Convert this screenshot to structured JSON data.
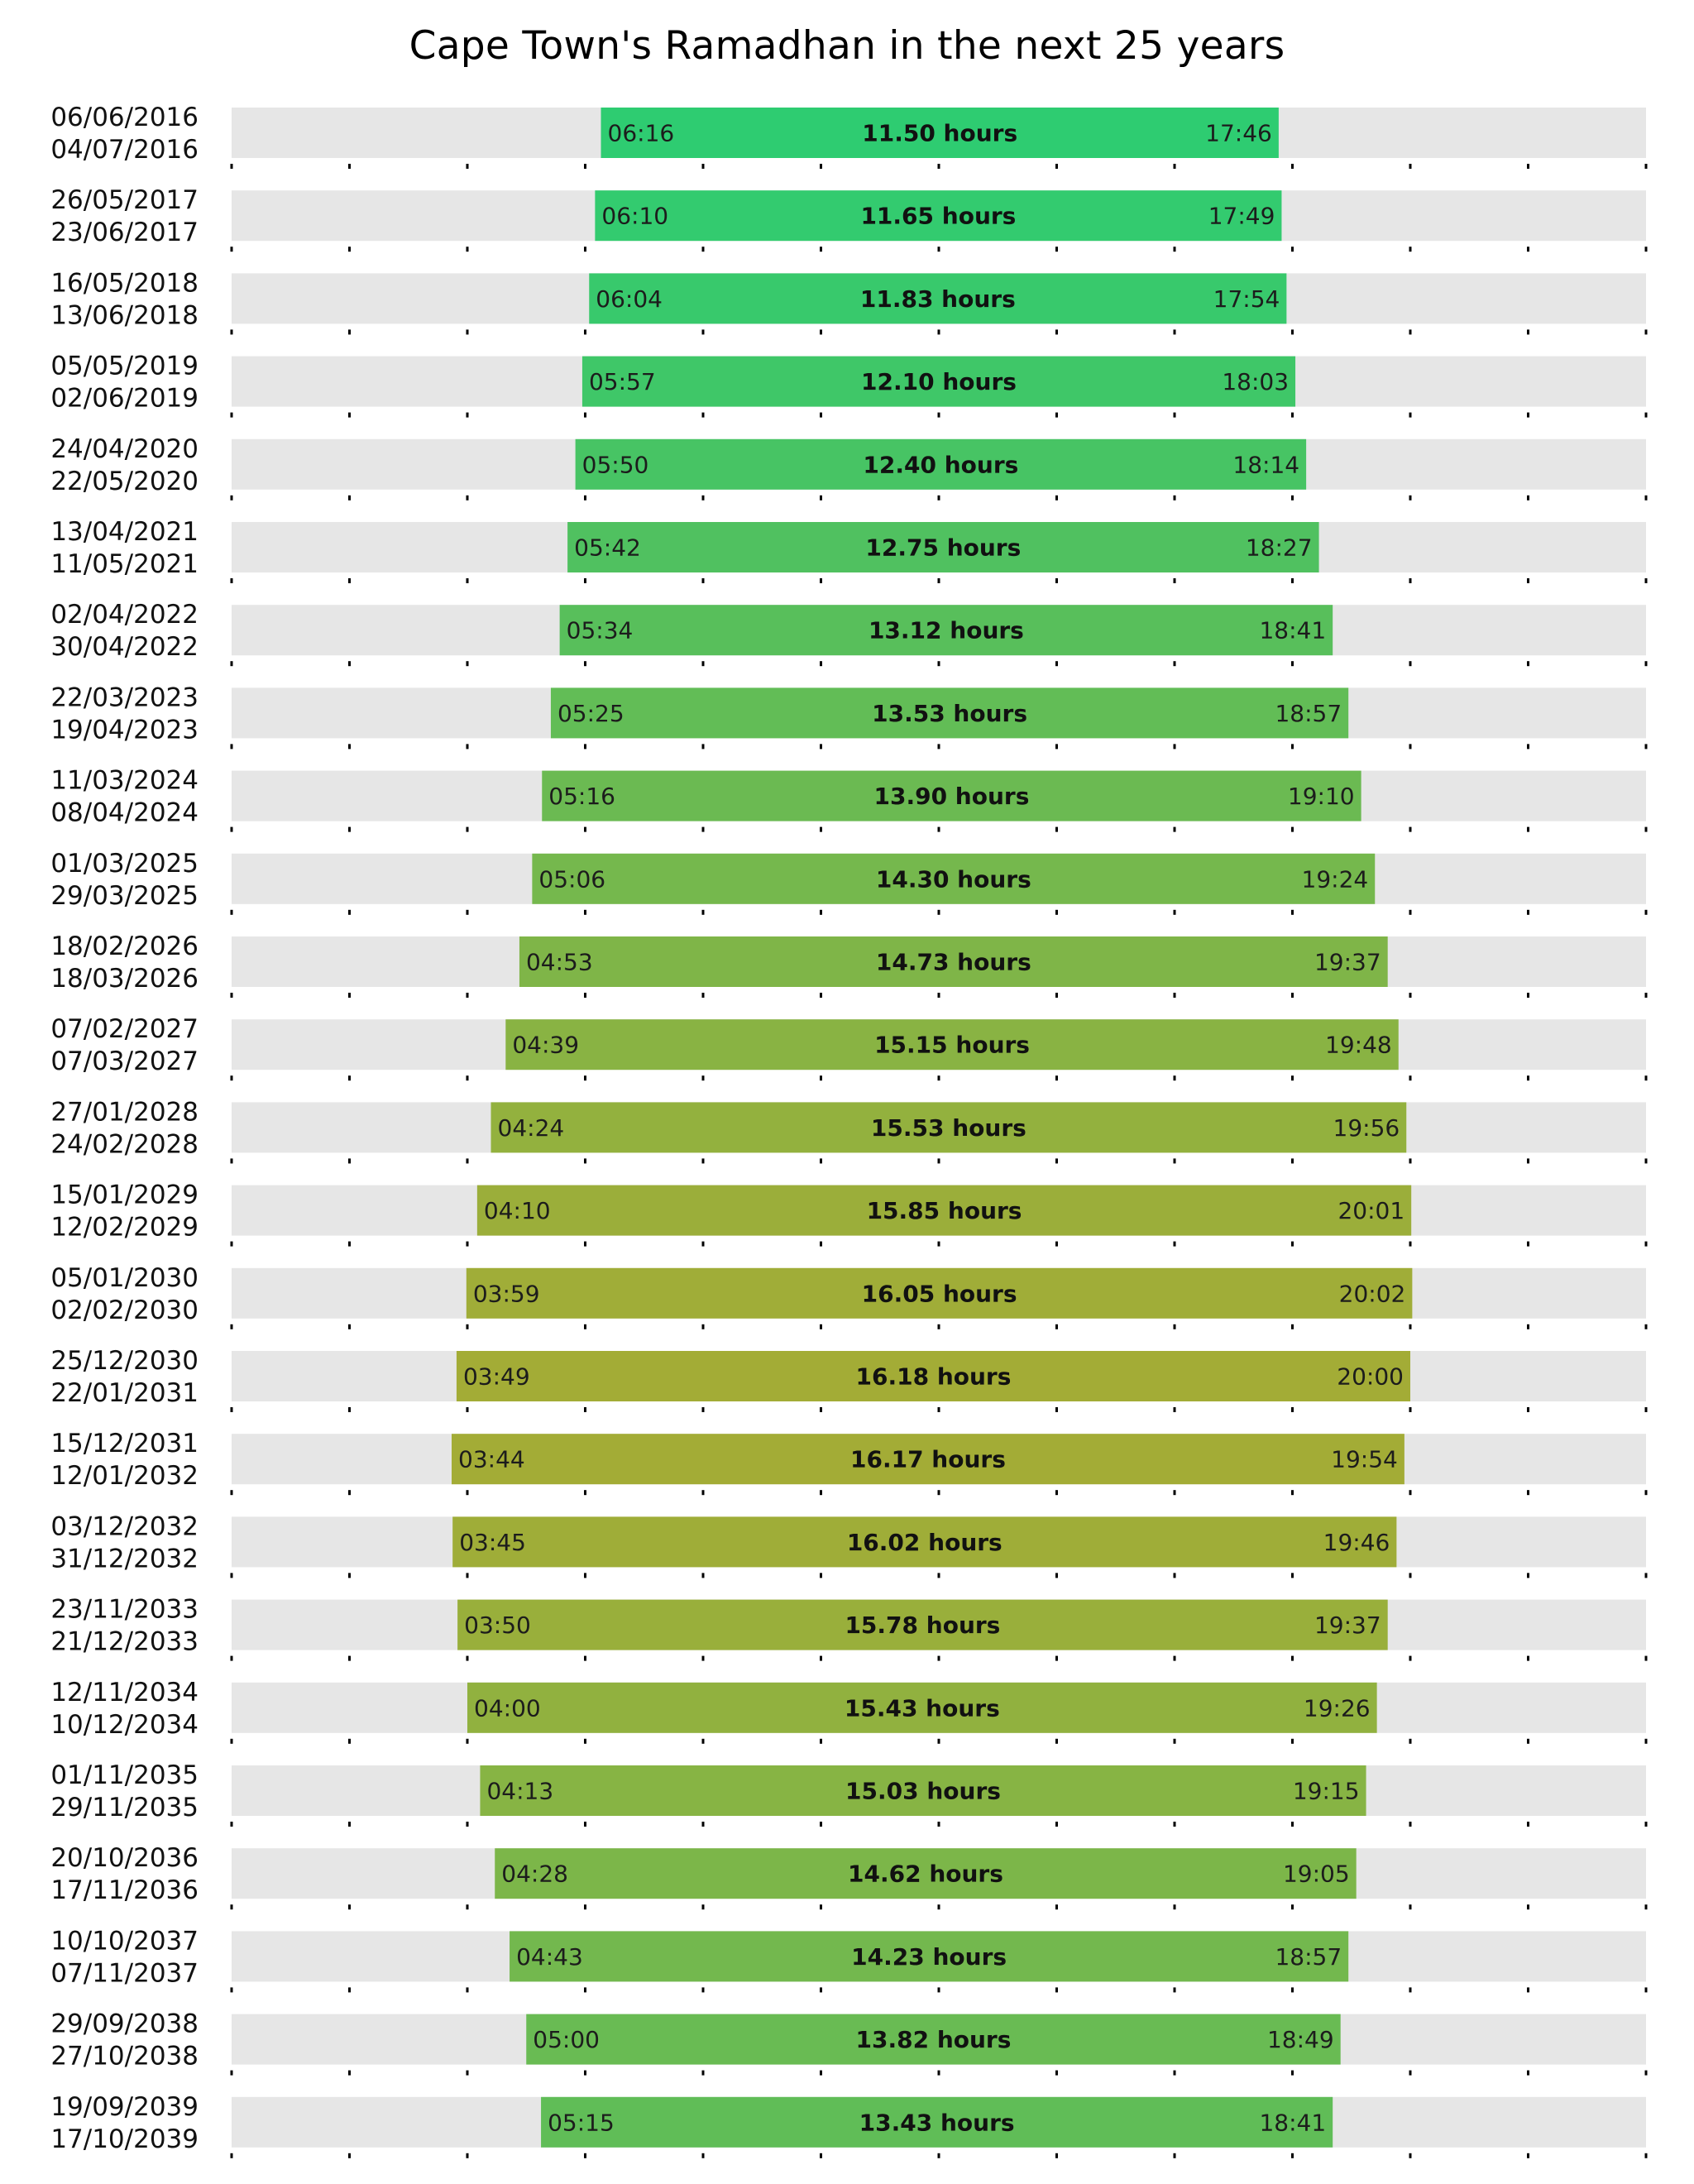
{
  "chart_data": {
    "type": "bar",
    "title": "Cape Town's Ramadhan in the next 25 years",
    "xlim": [
      0,
      24
    ],
    "grid": false,
    "track_color": "#e6e6e6",
    "hours_suffix": " hours",
    "rows": [
      {
        "start_date": "06/06/2016",
        "end_date": "04/07/2016",
        "sehri": "06:16",
        "iftar": "17:46",
        "hours": "11.50",
        "color": "#2ecc71"
      },
      {
        "start_date": "26/05/2017",
        "end_date": "23/06/2017",
        "sehri": "06:10",
        "iftar": "17:49",
        "hours": "11.65",
        "color": "#33cb6f"
      },
      {
        "start_date": "16/05/2018",
        "end_date": "13/06/2018",
        "sehri": "06:04",
        "iftar": "17:54",
        "hours": "11.83",
        "color": "#38c96c"
      },
      {
        "start_date": "05/05/2019",
        "end_date": "02/06/2019",
        "sehri": "05:57",
        "iftar": "18:03",
        "hours": "12.10",
        "color": "#3fc768"
      },
      {
        "start_date": "24/04/2020",
        "end_date": "22/05/2020",
        "sehri": "05:50",
        "iftar": "18:14",
        "hours": "12.40",
        "color": "#47c464"
      },
      {
        "start_date": "13/04/2021",
        "end_date": "11/05/2021",
        "sehri": "05:42",
        "iftar": "18:27",
        "hours": "12.75",
        "color": "#50c160"
      },
      {
        "start_date": "02/04/2022",
        "end_date": "30/04/2022",
        "sehri": "05:34",
        "iftar": "18:41",
        "hours": "13.12",
        "color": "#58bf5b"
      },
      {
        "start_date": "22/03/2023",
        "end_date": "19/04/2023",
        "sehri": "05:25",
        "iftar": "18:57",
        "hours": "13.53",
        "color": "#62bd56"
      },
      {
        "start_date": "11/03/2024",
        "end_date": "08/04/2024",
        "sehri": "05:16",
        "iftar": "19:10",
        "hours": "13.90",
        "color": "#6bba52"
      },
      {
        "start_date": "01/03/2025",
        "end_date": "29/03/2025",
        "sehri": "05:06",
        "iftar": "19:24",
        "hours": "14.30",
        "color": "#75b84d"
      },
      {
        "start_date": "18/02/2026",
        "end_date": "18/03/2026",
        "sehri": "04:53",
        "iftar": "19:37",
        "hours": "14.73",
        "color": "#7fb548"
      },
      {
        "start_date": "07/02/2027",
        "end_date": "07/03/2027",
        "sehri": "04:39",
        "iftar": "19:48",
        "hours": "15.15",
        "color": "#89b343"
      },
      {
        "start_date": "27/01/2028",
        "end_date": "24/02/2028",
        "sehri": "04:24",
        "iftar": "19:56",
        "hours": "15.53",
        "color": "#93b13e"
      },
      {
        "start_date": "15/01/2029",
        "end_date": "12/02/2029",
        "sehri": "04:10",
        "iftar": "20:01",
        "hours": "15.85",
        "color": "#9bae3a"
      },
      {
        "start_date": "05/01/2030",
        "end_date": "02/02/2030",
        "sehri": "03:59",
        "iftar": "20:02",
        "hours": "16.05",
        "color": "#a0ad38"
      },
      {
        "start_date": "25/12/2030",
        "end_date": "22/01/2031",
        "sehri": "03:49",
        "iftar": "20:00",
        "hours": "16.18",
        "color": "#a3ac36"
      },
      {
        "start_date": "15/12/2031",
        "end_date": "12/01/2032",
        "sehri": "03:44",
        "iftar": "19:54",
        "hours": "16.17",
        "color": "#a3ac36"
      },
      {
        "start_date": "03/12/2032",
        "end_date": "31/12/2032",
        "sehri": "03:45",
        "iftar": "19:46",
        "hours": "16.02",
        "color": "#9fad38"
      },
      {
        "start_date": "23/11/2033",
        "end_date": "21/12/2033",
        "sehri": "03:50",
        "iftar": "19:37",
        "hours": "15.78",
        "color": "#99af3b"
      },
      {
        "start_date": "12/11/2034",
        "end_date": "10/12/2034",
        "sehri": "04:00",
        "iftar": "19:26",
        "hours": "15.43",
        "color": "#91b13f"
      },
      {
        "start_date": "01/11/2035",
        "end_date": "29/11/2035",
        "sehri": "04:13",
        "iftar": "19:15",
        "hours": "15.03",
        "color": "#87b444"
      },
      {
        "start_date": "20/10/2036",
        "end_date": "17/11/2036",
        "sehri": "04:28",
        "iftar": "19:05",
        "hours": "14.62",
        "color": "#7cb649"
      },
      {
        "start_date": "10/10/2037",
        "end_date": "07/11/2037",
        "sehri": "04:43",
        "iftar": "18:57",
        "hours": "14.23",
        "color": "#73b84e"
      },
      {
        "start_date": "29/09/2038",
        "end_date": "27/10/2038",
        "sehri": "05:00",
        "iftar": "18:49",
        "hours": "13.82",
        "color": "#69bb53"
      },
      {
        "start_date": "19/09/2039",
        "end_date": "17/10/2039",
        "sehri": "05:15",
        "iftar": "18:41",
        "hours": "13.43",
        "color": "#60bd57"
      }
    ]
  }
}
